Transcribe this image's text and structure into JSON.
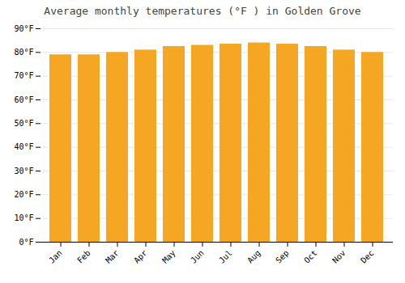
{
  "chart_data": {
    "type": "bar",
    "title": "Average monthly temperatures (°F ) in Golden Grove",
    "categories": [
      "Jan",
      "Feb",
      "Mar",
      "Apr",
      "May",
      "Jun",
      "Jul",
      "Aug",
      "Sep",
      "Oct",
      "Nov",
      "Dec"
    ],
    "values": [
      79,
      79,
      80,
      81,
      82.5,
      83,
      83.5,
      84,
      83.5,
      82.5,
      81,
      80
    ],
    "color": "#F5A623",
    "ylim": [
      0,
      90
    ],
    "yticks": [
      {
        "value": 0,
        "label": "0°F"
      },
      {
        "value": 10,
        "label": "10°F"
      },
      {
        "value": 20,
        "label": "20°F"
      },
      {
        "value": 30,
        "label": "30°F"
      },
      {
        "value": 40,
        "label": "40°F"
      },
      {
        "value": 50,
        "label": "50°F"
      },
      {
        "value": 60,
        "label": "60°F"
      },
      {
        "value": 70,
        "label": "70°F"
      },
      {
        "value": 80,
        "label": "80°F"
      },
      {
        "value": 90,
        "label": "90°F"
      }
    ],
    "grid": true
  }
}
